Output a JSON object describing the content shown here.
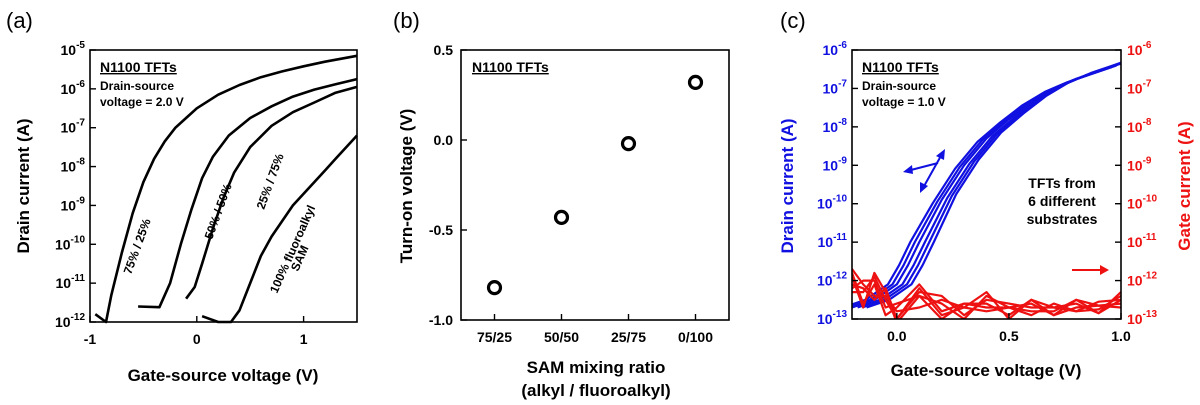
{
  "chart_data": [
    {
      "type": "line",
      "panel_label": "(a)",
      "title": "N1100 TFTs",
      "annotation_lines": [
        "Drain-source",
        "voltage = 2.0 V"
      ],
      "xlabel": "Gate-source voltage (V)",
      "ylabel": "Drain current (A)",
      "xlim": [
        -1,
        1.5
      ],
      "ylim_log10": [
        -12,
        -5
      ],
      "y_scale": "log",
      "x_ticks": [
        "-1",
        "0",
        "1"
      ],
      "y_tick_exponents": [
        "-12",
        "-11",
        "-10",
        "-9",
        "-8",
        "-7",
        "-6",
        "-5"
      ],
      "y_tick_base": "10",
      "curve_labels": [
        "75% / 25%",
        "50% / 50%",
        "25% / 75%",
        "100% fluoroalkyl",
        "SAM"
      ],
      "series": [
        {
          "label": "75% / 25%",
          "x": [
            -0.95,
            -0.85,
            -0.8,
            -0.7,
            -0.6,
            -0.5,
            -0.4,
            -0.3,
            -0.2,
            -0.1,
            0.0,
            0.2,
            0.4,
            0.6,
            0.8,
            1.0,
            1.2,
            1.5
          ],
          "y_log10": [
            -11.8,
            -12.0,
            -11.3,
            -10.2,
            -9.2,
            -8.4,
            -7.8,
            -7.35,
            -7.0,
            -6.75,
            -6.5,
            -6.15,
            -5.9,
            -5.7,
            -5.55,
            -5.42,
            -5.3,
            -5.15
          ]
        },
        {
          "label": "50% / 50%",
          "x": [
            -0.55,
            -0.35,
            -0.25,
            -0.15,
            -0.05,
            0.05,
            0.15,
            0.3,
            0.5,
            0.7,
            0.9,
            1.1,
            1.3,
            1.5
          ],
          "y_log10": [
            -11.6,
            -11.62,
            -11.0,
            -10.0,
            -9.1,
            -8.3,
            -7.75,
            -7.2,
            -6.75,
            -6.45,
            -6.2,
            -6.02,
            -5.88,
            -5.75
          ]
        },
        {
          "label": "25% / 75%",
          "x": [
            -0.1,
            -0.02,
            0.05,
            0.15,
            0.25,
            0.35,
            0.5,
            0.7,
            0.9,
            1.1,
            1.3,
            1.5
          ],
          "y_log10": [
            -11.4,
            -11.1,
            -10.5,
            -9.6,
            -8.8,
            -8.15,
            -7.5,
            -6.95,
            -6.6,
            -6.35,
            -6.1,
            -5.95
          ]
        },
        {
          "label": "100% fluoroalkyl SAM",
          "x": [
            0.05,
            0.2,
            0.32,
            0.4,
            0.5,
            0.6,
            0.7,
            0.8,
            0.9,
            1.0,
            1.1,
            1.2,
            1.3,
            1.4,
            1.5
          ],
          "y_log10": [
            -11.85,
            -12.0,
            -12.0,
            -11.7,
            -11.0,
            -10.3,
            -9.8,
            -9.4,
            -9.0,
            -8.7,
            -8.4,
            -8.1,
            -7.8,
            -7.5,
            -7.2
          ]
        }
      ]
    },
    {
      "type": "scatter",
      "panel_label": "(b)",
      "title": "N1100 TFTs",
      "xlabel": "SAM mixing ratio",
      "xlabel_line2": "(alkyl / fluoroalkyl)",
      "ylabel": "Turn-on voltage (V)",
      "categories": [
        "75/25",
        "50/50",
        "25/75",
        "0/100"
      ],
      "values": [
        -0.82,
        -0.43,
        -0.02,
        0.32
      ],
      "ylim": [
        -1.0,
        0.5
      ],
      "y_ticks": [
        "-1.0",
        "-0.5",
        "0.0",
        "0.5"
      ]
    },
    {
      "type": "line",
      "panel_label": "(c)",
      "title": "N1100 TFTs",
      "annotation_lines": [
        "Drain-source",
        "voltage = 1.0 V"
      ],
      "side_note_lines": [
        "TFTs from",
        "6 different",
        "substrates"
      ],
      "xlabel": "Gate-source voltage (V)",
      "ylabel_left": "Drain current (A)",
      "ylabel_right": "Gate current (A)",
      "xlim": [
        -0.2,
        1.0
      ],
      "x_ticks": [
        "0.0",
        "0.5",
        "1.0"
      ],
      "ylim_log10": [
        -13,
        -6
      ],
      "y_scale": "log",
      "y_tick_base": "10",
      "y_tick_exponents": [
        "-13",
        "-12",
        "-11",
        "-10",
        "-9",
        "-8",
        "-7",
        "-6"
      ],
      "colors": {
        "drain": "#1010e0",
        "gate": "#ee1111"
      },
      "series": [
        {
          "name": "drain",
          "x": [
            -0.2,
            -0.1,
            -0.05,
            0.0,
            0.05,
            0.1,
            0.2,
            0.3,
            0.4,
            0.5,
            0.6,
            0.7,
            0.8,
            0.9,
            1.0
          ],
          "y_log10": [
            -12.7,
            -12.5,
            -12.3,
            -12.1,
            -11.6,
            -11.0,
            -9.9,
            -9.0,
            -8.3,
            -7.8,
            -7.35,
            -7.0,
            -6.75,
            -6.55,
            -6.35
          ]
        },
        {
          "name": "gate",
          "x": [
            -0.2,
            -0.15,
            -0.1,
            -0.05,
            0.0,
            0.1,
            0.2,
            0.3,
            0.4,
            0.5,
            0.6,
            0.7,
            0.8,
            0.9,
            1.0
          ],
          "y_log10": [
            -12.1,
            -12.4,
            -12.2,
            -12.6,
            -12.9,
            -12.5,
            -12.7,
            -12.8,
            -12.6,
            -12.8,
            -12.7,
            -12.8,
            -12.7,
            -12.75,
            -12.6
          ]
        }
      ]
    }
  ]
}
